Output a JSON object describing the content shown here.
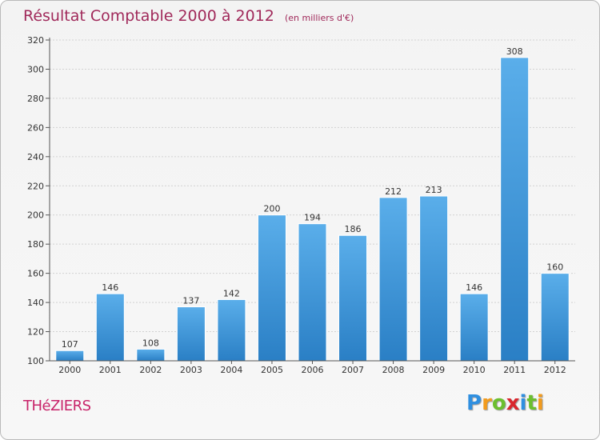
{
  "title": "Résultat Comptable 2000 à 2012",
  "subtitle": "(en milliers d'€)",
  "commune": "THéZIERS",
  "logo": {
    "text": "Proxiti",
    "letters": [
      {
        "ch": "P",
        "color": "#2f8fe0"
      },
      {
        "ch": "r",
        "color": "#f29b1d"
      },
      {
        "ch": "o",
        "color": "#6cbf2f"
      },
      {
        "ch": "x",
        "color": "#d9272e"
      },
      {
        "ch": "i",
        "color": "#2f8fe0"
      },
      {
        "ch": "t",
        "color": "#6cbf2f"
      },
      {
        "ch": "i",
        "color": "#f29b1d"
      }
    ]
  },
  "colors": {
    "bar_top": "#5aaeea",
    "bar_bottom": "#2a7fc5",
    "title": "#a0295a",
    "commune": "#c8246a",
    "grid": "#d2d2d2",
    "axis": "#555555"
  },
  "chart_data": {
    "type": "bar",
    "title": "Résultat Comptable 2000 à 2012",
    "subtitle": "(en milliers d'€)",
    "categories": [
      "2000",
      "2001",
      "2002",
      "2003",
      "2004",
      "2005",
      "2006",
      "2007",
      "2008",
      "2009",
      "2010",
      "2011",
      "2012"
    ],
    "values": [
      107,
      146,
      108,
      137,
      142,
      200,
      194,
      186,
      212,
      213,
      146,
      308,
      160
    ],
    "ylim": [
      100,
      320
    ],
    "yticks": [
      100,
      120,
      140,
      160,
      180,
      200,
      220,
      240,
      260,
      280,
      300,
      320
    ],
    "grid": true,
    "xlabel": "",
    "ylabel": ""
  }
}
